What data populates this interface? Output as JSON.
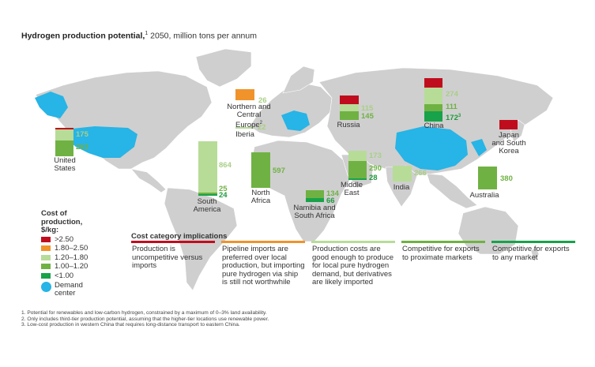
{
  "title": {
    "bold": "Hydrogen production potential,",
    "sup": "1",
    "rest": " 2050, million tons per annum"
  },
  "colors": {
    "gt_2_50": "#c00d1e",
    "c_1_80_2_50": "#f0932a",
    "c_1_20_1_80": "#b7dc98",
    "c_1_00_1_20": "#6fb243",
    "lt_1_00": "#18a24a",
    "demand_center": "#27b4e6",
    "land": "#cfcfcf"
  },
  "regions": {
    "united_states": {
      "name": "United States",
      "values": [
        "175",
        "263"
      ]
    },
    "south_america": {
      "name": "South America",
      "values": [
        "864",
        "25",
        "24"
      ]
    },
    "northern_central_europe": {
      "name": "Northern and Central Europe",
      "sup": "2",
      "values": [
        "26"
      ]
    },
    "iberia": {
      "name": "Iberia",
      "values": [
        "22"
      ]
    },
    "north_africa": {
      "name": "North Africa",
      "values": [
        "597"
      ]
    },
    "namibia_south_africa": {
      "name": "Namibia and South Africa",
      "values": [
        "134",
        "66"
      ]
    },
    "russia": {
      "name": "Russia",
      "values": [
        "115",
        "145"
      ]
    },
    "middle_east": {
      "name": "Middle East",
      "values": [
        "173",
        "290",
        "28"
      ]
    },
    "india": {
      "name": "India",
      "values": [
        "266"
      ]
    },
    "china": {
      "name": "China",
      "values": [
        "274",
        "111",
        "172"
      ],
      "sup": "3"
    },
    "japan_south_korea": {
      "name": "Japan and South Korea"
    },
    "australia": {
      "name": "Australia",
      "values": [
        "380"
      ]
    }
  },
  "legend": {
    "title": "Cost of production, $/kg:",
    "items": [
      ">2.50",
      "1.80–2.50",
      "1.20–1.80",
      "1.00–1.20",
      "<1.00"
    ],
    "demand": "Demand center"
  },
  "implications": {
    "title": "Cost category implications",
    "items": [
      "Production is uncompetitive versus imports",
      "Pipeline imports are preferred over local production, but importing pure hydrogen via ship is still not worthwhile",
      "Production costs are good enough to produce for local pure hydrogen demand, but derivatives are likely imported",
      "Competitive for exports to proximate markets",
      "Competitive for exports to any market"
    ]
  },
  "footnotes": [
    "1.  Potential for renewables and low-carbon hydrogen, constrained by a maximum of 0–3% land availability.",
    "2.  Only includes third-tier production potential, assuming that the higher-tier locations use renewable power.",
    "3.  Low-cost production in western China that requires long-distance transport to eastern China."
  ]
}
